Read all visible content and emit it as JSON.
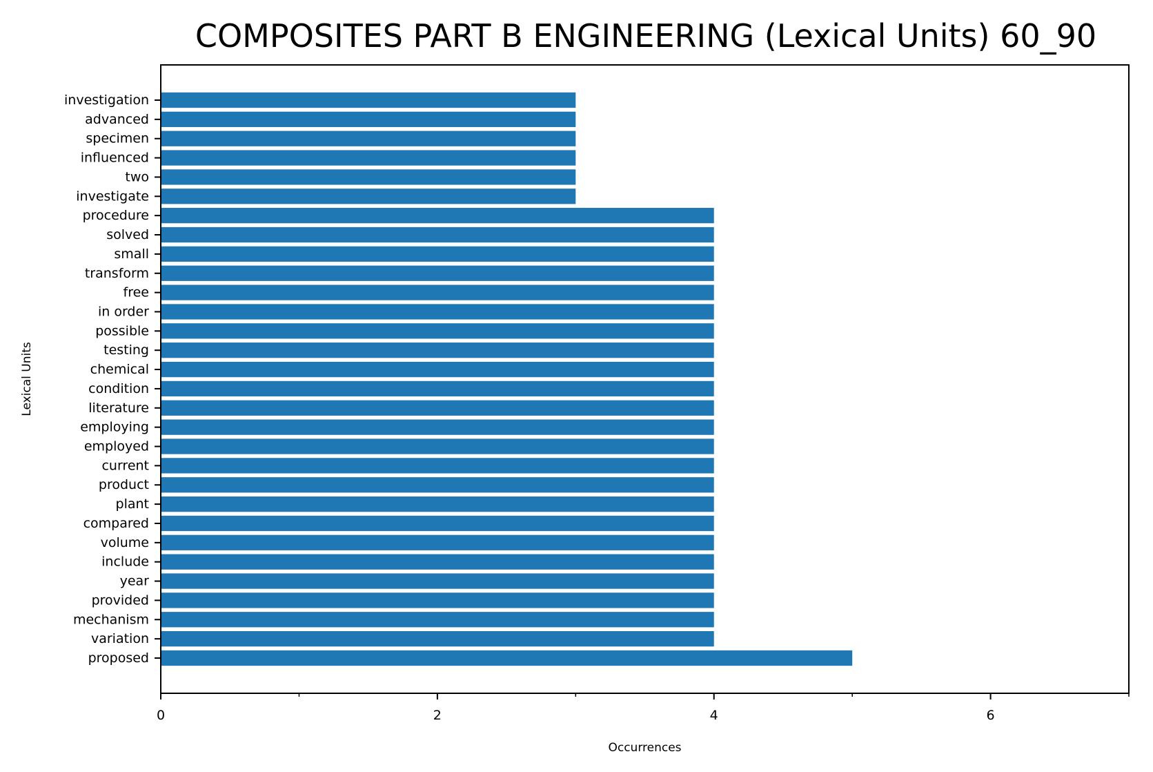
{
  "chart_data": {
    "type": "bar",
    "orientation": "horizontal",
    "title": "COMPOSITES PART B ENGINEERING (Lexical Units) 60_90",
    "xlabel": "Occurrences",
    "ylabel": "Lexical Units",
    "xlim": [
      0,
      7
    ],
    "x_ticks": [
      0,
      2,
      4,
      6
    ],
    "x_minor_ticks": [
      1,
      3,
      5,
      7
    ],
    "bar_color": "#1f77b4",
    "grid": false,
    "categories": [
      "proposed",
      "variation",
      "mechanism",
      "provided",
      "year",
      "include",
      "volume",
      "compared",
      "plant",
      "product",
      "current",
      "employed",
      "employing",
      "literature",
      "condition",
      "chemical",
      "testing",
      "possible",
      "in order",
      "free",
      "transform",
      "small",
      "solved",
      "procedure",
      "investigate",
      "two",
      "influenced",
      "specimen",
      "advanced",
      "investigation"
    ],
    "values": [
      5,
      4,
      4,
      4,
      4,
      4,
      4,
      4,
      4,
      4,
      4,
      4,
      4,
      4,
      4,
      4,
      4,
      4,
      4,
      4,
      4,
      4,
      4,
      4,
      3,
      3,
      3,
      3,
      3,
      3
    ]
  }
}
